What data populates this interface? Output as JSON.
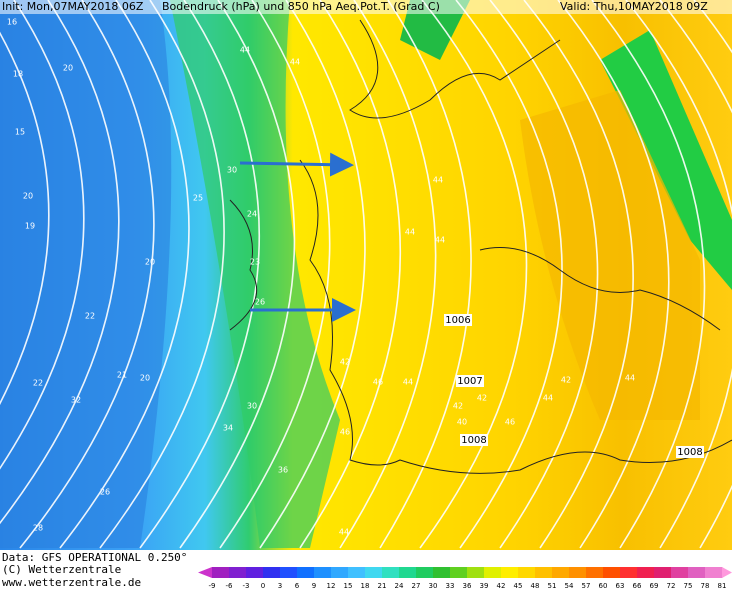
{
  "header": {
    "init": "Init: Mon,07MAY2018 06Z",
    "title": "Bodendruck (hPa) und 850 hPa Aeq.Pot.T. (Grad C)",
    "valid": "Valid: Thu,10MAY2018 09Z"
  },
  "footer": {
    "data": "Data: GFS OPERATIONAL 0.250°",
    "copyright": "(C) Wetterzentrale",
    "url": "www.wetterzentrale.de"
  },
  "colorbar": {
    "labels": [
      -9,
      -6,
      -3,
      0,
      3,
      6,
      9,
      12,
      15,
      18,
      21,
      24,
      27,
      30,
      33,
      36,
      39,
      42,
      45,
      48,
      51,
      54,
      57,
      60,
      63,
      66,
      69,
      72,
      75,
      78,
      81
    ],
    "colors": [
      "#cc33cc",
      "#a020c0",
      "#8020d0",
      "#6020e0",
      "#3030f0",
      "#2050ff",
      "#1070ff",
      "#1e90ff",
      "#30a8ff",
      "#40c0ff",
      "#40d8f0",
      "#30e0c0",
      "#20d890",
      "#20cc60",
      "#30c030",
      "#60d020",
      "#a0e010",
      "#e0f000",
      "#ffee00",
      "#ffd800",
      "#ffc000",
      "#ffa800",
      "#ff9000",
      "#ff7000",
      "#ff5000",
      "#ff3030",
      "#f02050",
      "#e02070",
      "#e040a0",
      "#e060c0",
      "#f080d0",
      "#ff99dd"
    ]
  },
  "isobar_labels": [
    "1006",
    "1007",
    "1008",
    "1008"
  ],
  "field_labels": [
    "16",
    "18",
    "15",
    "20",
    "20",
    "19",
    "20",
    "22",
    "22",
    "21",
    "20",
    "32",
    "26",
    "28",
    "30",
    "25",
    "24",
    "23",
    "26",
    "30",
    "34",
    "36",
    "44",
    "44",
    "44",
    "44",
    "44",
    "42",
    "46",
    "44",
    "42",
    "42",
    "40",
    "46",
    "44",
    "42",
    "44",
    "46",
    "44"
  ]
}
